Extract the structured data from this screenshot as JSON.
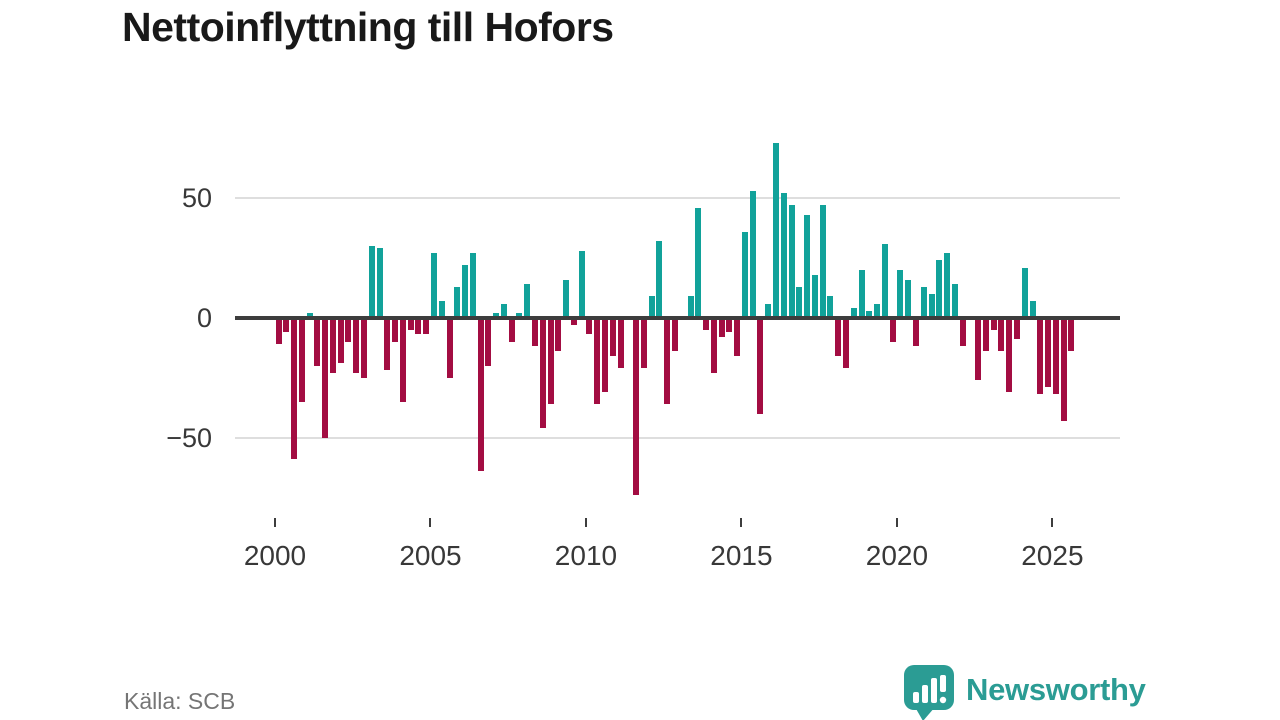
{
  "title": "Nettoinflyttning till Hofors",
  "footer": {
    "source": "Källa: SCB",
    "brand": "Newsworthy"
  },
  "colors": {
    "positive": "#11a29a",
    "negative": "#a30d42",
    "axis": "#3d3d3d",
    "grid": "#dedede",
    "tick_label": "#383838",
    "source_text": "#757575",
    "brand": "#2b9c94",
    "title": "#191919"
  },
  "chart_data": {
    "type": "bar",
    "title": "Nettoinflyttning till Hofors",
    "xlabel": "",
    "ylabel": "",
    "frequency": "quarterly",
    "x_start": "2000 Q1",
    "x_end": "2025 Q3",
    "ylim": [
      -80,
      80
    ],
    "grid": "horizontal",
    "legend": "none",
    "y_ticks": [
      {
        "label": "50",
        "value": 50
      },
      {
        "label": "0",
        "value": 0
      },
      {
        "label": "−50",
        "value": -50
      }
    ],
    "x_ticks": [
      {
        "label": "2000",
        "year": 2000
      },
      {
        "label": "2005",
        "year": 2005
      },
      {
        "label": "2010",
        "year": 2010
      },
      {
        "label": "2015",
        "year": 2015
      },
      {
        "label": "2020",
        "year": 2020
      },
      {
        "label": "2025",
        "year": 2025
      }
    ],
    "values": [
      -10,
      -5,
      -58,
      -34,
      2,
      -19,
      -49,
      -22,
      -18,
      -9,
      -22,
      -24,
      30,
      29,
      -21,
      -9,
      -34,
      -4,
      -6,
      -6,
      27,
      7,
      -24,
      13,
      22,
      27,
      -63,
      -19,
      2,
      6,
      -9,
      2,
      14,
      -11,
      -45,
      -35,
      -13,
      16,
      -2,
      28,
      -6,
      -35,
      -30,
      -15,
      -20,
      0,
      -73,
      -20,
      9,
      32,
      -35,
      -13,
      0,
      9,
      46,
      -4,
      -22,
      -7,
      -5,
      -15,
      36,
      53,
      -39,
      6,
      73,
      52,
      47,
      13,
      43,
      18,
      47,
      9,
      -15,
      -20,
      4,
      20,
      3,
      6,
      31,
      -9,
      20,
      16,
      -11,
      13,
      10,
      24,
      27,
      14,
      -11,
      0,
      -25,
      -13,
      -4,
      -13,
      -30,
      -8,
      21,
      7,
      -31,
      -28,
      -31,
      -42,
      -13
    ]
  }
}
